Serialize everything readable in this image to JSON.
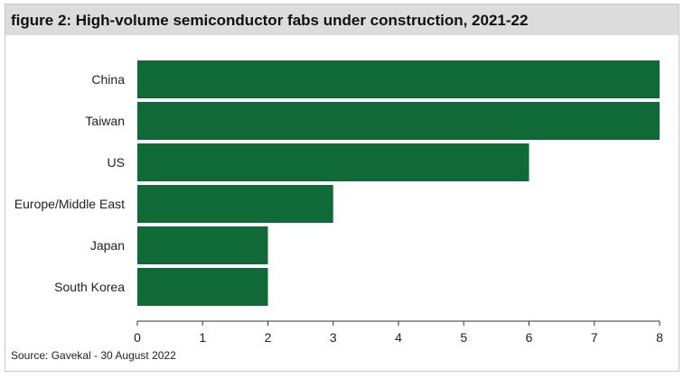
{
  "header": {
    "title": "figure 2: High-volume semiconductor fabs under construction, 2021-22"
  },
  "footer": {
    "source": "Source: Gavekal - 30 August 2022"
  },
  "colors": {
    "bar": "#0f6a37",
    "title_bg": "#dcdcdc"
  },
  "chart_data": {
    "type": "bar",
    "orientation": "horizontal",
    "categories": [
      "China",
      "Taiwan",
      "US",
      "Europe/Middle East",
      "Japan",
      "South Korea"
    ],
    "values": [
      8,
      8,
      6,
      3,
      2,
      2
    ],
    "xlim": [
      0,
      8
    ],
    "xticks": [
      0,
      1,
      2,
      3,
      4,
      5,
      6,
      7,
      8
    ],
    "grid": false,
    "legend": "none"
  }
}
